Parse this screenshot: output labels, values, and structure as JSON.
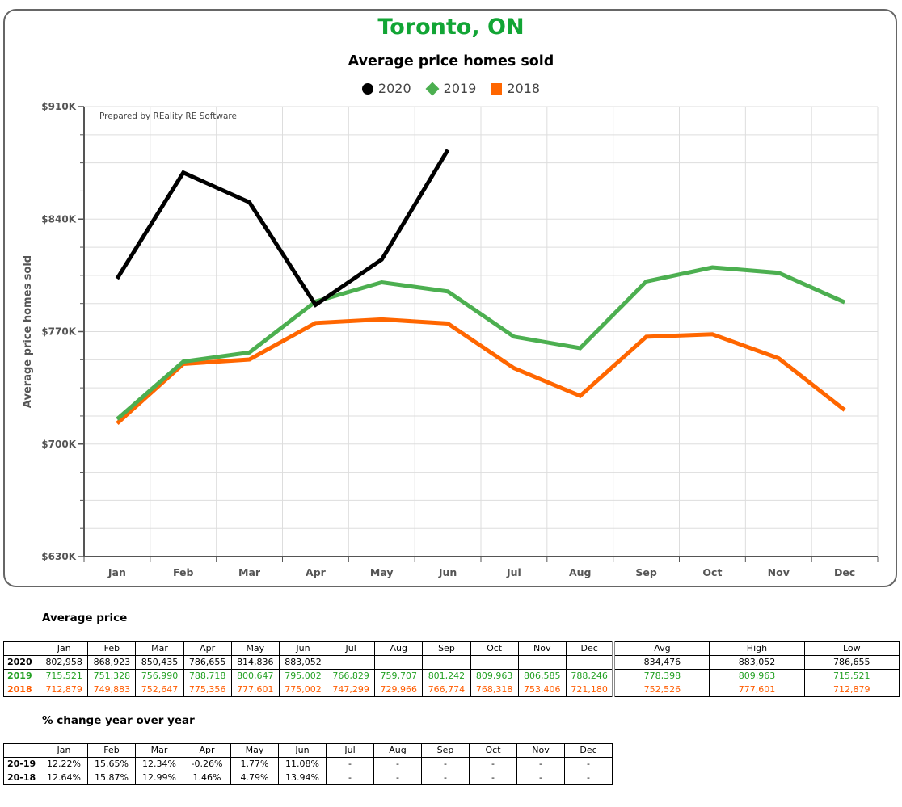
{
  "chart_data": {
    "type": "line",
    "title": "Toronto, ON",
    "subtitle": "Average price homes sold",
    "ylabel": "Average price homes sold",
    "xlabel": "",
    "watermark": "Prepared by REality RE Software",
    "categories": [
      "Jan",
      "Feb",
      "Mar",
      "Apr",
      "May",
      "Jun",
      "Jul",
      "Aug",
      "Sep",
      "Oct",
      "Nov",
      "Dec"
    ],
    "ylim": [
      630000,
      910000
    ],
    "yticks": [
      630000,
      700000,
      770000,
      840000,
      910000
    ],
    "ytick_labels": [
      "$630K",
      "$700K",
      "$770K",
      "$840K",
      "$910K"
    ],
    "grid": true,
    "legend_position": "top-center",
    "series": [
      {
        "name": "2020",
        "color": "#000000",
        "marker": "circle",
        "values": [
          802958,
          868923,
          850435,
          786655,
          814836,
          883052,
          null,
          null,
          null,
          null,
          null,
          null
        ]
      },
      {
        "name": "2019",
        "color": "#4caf50",
        "marker": "diamond",
        "values": [
          715521,
          751328,
          756990,
          788718,
          800647,
          795002,
          766829,
          759707,
          801242,
          809963,
          806585,
          788246
        ]
      },
      {
        "name": "2018",
        "color": "#ff6600",
        "marker": "square",
        "values": [
          712879,
          749883,
          752647,
          775356,
          777601,
          775002,
          747299,
          729966,
          766774,
          768318,
          753406,
          721180
        ]
      }
    ]
  },
  "avg_table": {
    "heading": "Average price",
    "months": [
      "Jan",
      "Feb",
      "Mar",
      "Apr",
      "May",
      "Jun",
      "Jul",
      "Aug",
      "Sep",
      "Oct",
      "Nov",
      "Dec"
    ],
    "stat_headers": [
      "Avg",
      "High",
      "Low"
    ],
    "rows": [
      {
        "label": "2020",
        "values": [
          "802,958",
          "868,923",
          "850,435",
          "786,655",
          "814,836",
          "883,052",
          "",
          "",
          "",
          "",
          "",
          ""
        ],
        "stats": [
          "834,476",
          "883,052",
          "786,655"
        ]
      },
      {
        "label": "2019",
        "values": [
          "715,521",
          "751,328",
          "756,990",
          "788,718",
          "800,647",
          "795,002",
          "766,829",
          "759,707",
          "801,242",
          "809,963",
          "806,585",
          "788,246"
        ],
        "stats": [
          "778,398",
          "809,963",
          "715,521"
        ]
      },
      {
        "label": "2018",
        "values": [
          "712,879",
          "749,883",
          "752,647",
          "775,356",
          "777,601",
          "775,002",
          "747,299",
          "729,966",
          "766,774",
          "768,318",
          "753,406",
          "721,180"
        ],
        "stats": [
          "752,526",
          "777,601",
          "712,879"
        ]
      }
    ]
  },
  "change_table": {
    "heading": "% change year over year",
    "months": [
      "Jan",
      "Feb",
      "Mar",
      "Apr",
      "May",
      "Jun",
      "Jul",
      "Aug",
      "Sep",
      "Oct",
      "Nov",
      "Dec"
    ],
    "rows": [
      {
        "label": "20-19",
        "values": [
          "12.22%",
          "15.65%",
          "12.34%",
          "-0.26%",
          "1.77%",
          "11.08%",
          "-",
          "-",
          "-",
          "-",
          "-",
          "-"
        ]
      },
      {
        "label": "20-18",
        "values": [
          "12.64%",
          "15.87%",
          "12.99%",
          "1.46%",
          "4.79%",
          "13.94%",
          "-",
          "-",
          "-",
          "-",
          "-",
          "-"
        ]
      }
    ]
  }
}
